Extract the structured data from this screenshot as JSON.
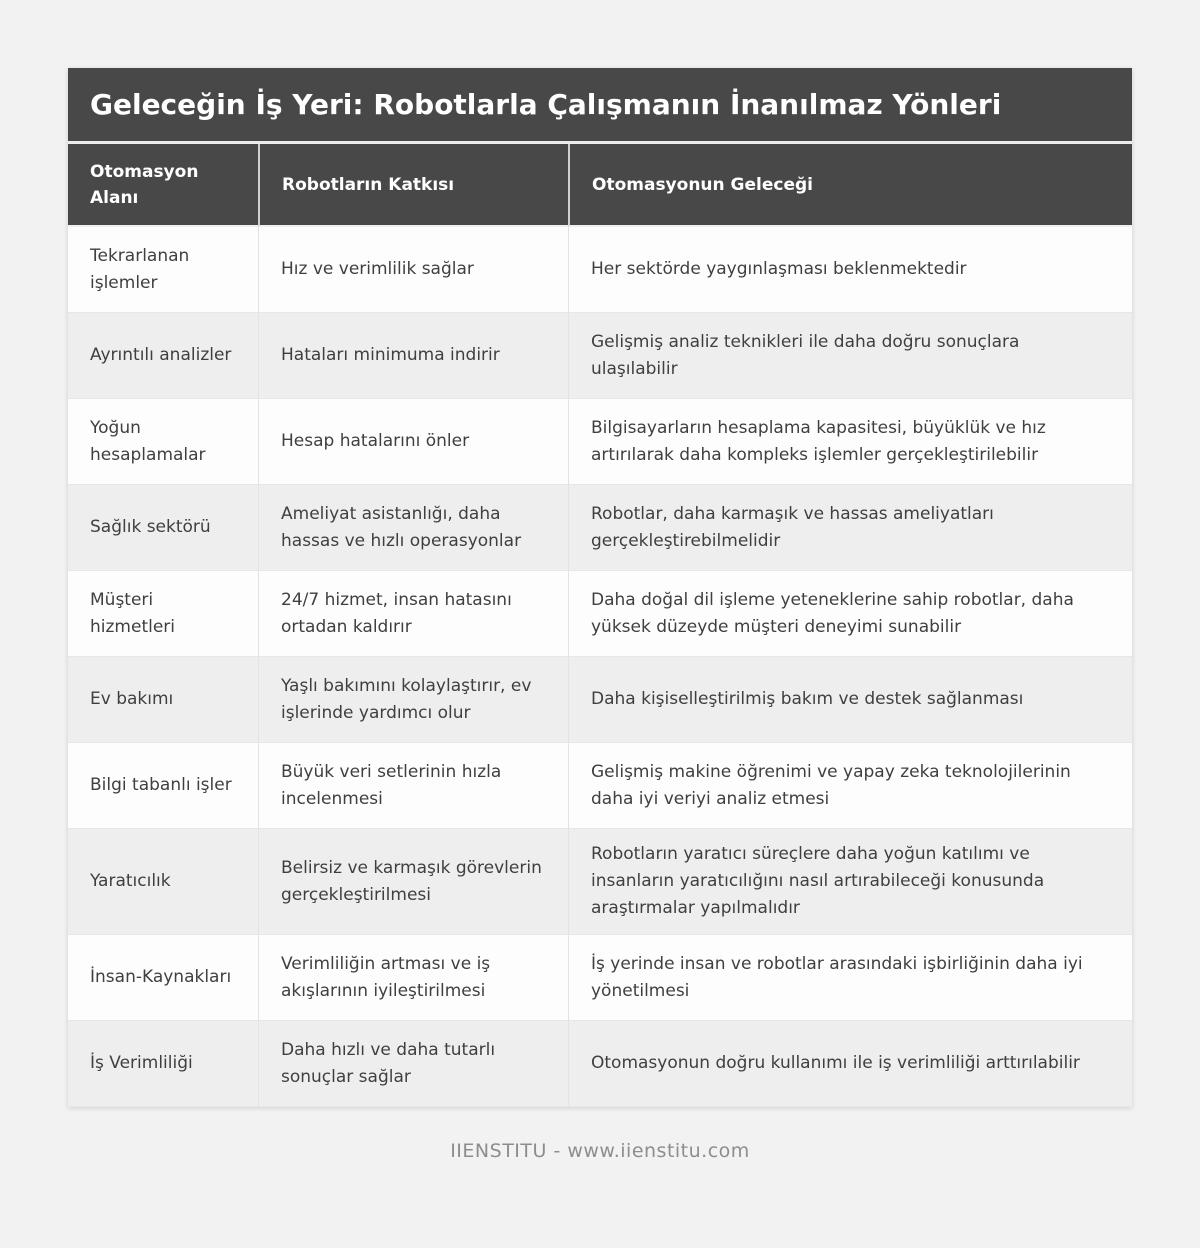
{
  "page": {
    "title": "Geleceğin İş Yeri: Robotlarla Çalışmanın İnanılmaz Yönleri",
    "footer": "IIENSTITU - www.iienstitu.com"
  },
  "colors": {
    "header_background": "#484848",
    "header_text": "#ffffff",
    "body_text": "#3f3f3f",
    "row_white": "#fdfdfd",
    "row_alternate": "#eeeeee",
    "page_background": "#f2f2f3",
    "cell_border": "#e3e3e3",
    "footer_text": "#8d8d8d"
  },
  "table": {
    "columns": [
      "Otomasyon Alanı",
      "Robotların Katkısı",
      "Otomasyonun Geleceği"
    ],
    "rows": [
      [
        "Tekrarlanan işlemler",
        "Hız ve verimlilik sağlar",
        "Her sektörde yaygınlaşması beklenmektedir"
      ],
      [
        "Ayrıntılı analizler",
        "Hataları minimuma indirir",
        "Gelişmiş analiz teknikleri ile daha doğru sonuçlara ulaşılabilir"
      ],
      [
        "Yoğun hesaplamalar",
        "Hesap hatalarını önler",
        "Bilgisayarların hesaplama kapasitesi, büyüklük ve hız artırılarak daha kompleks işlemler gerçekleştirilebilir"
      ],
      [
        "Sağlık sektörü",
        "Ameliyat asistanlığı, daha hassas ve hızlı operasyonlar",
        "Robotlar, daha karmaşık ve hassas ameliyatları gerçekleştirebilmelidir"
      ],
      [
        "Müşteri hizmetleri",
        "24/7 hizmet, insan hatasını ortadan kaldırır",
        "Daha doğal dil işleme yeteneklerine sahip robotlar, daha yüksek düzeyde müşteri deneyimi sunabilir"
      ],
      [
        "Ev bakımı",
        "Yaşlı bakımını kolaylaştırır, ev işlerinde yardımcı olur",
        "Daha kişiselleştirilmiş bakım ve destek sağlanması"
      ],
      [
        "Bilgi tabanlı işler",
        "Büyük veri setlerinin hızla incelenmesi",
        "Gelişmiş makine öğrenimi ve yapay zeka teknolojilerinin daha iyi veriyi analiz etmesi"
      ],
      [
        "Yaratıcılık",
        "Belirsiz ve karmaşık görevlerin gerçekleştirilmesi",
        "Robotların yaratıcı süreçlere daha yoğun katılımı ve insanların yaratıcılığını nasıl artırabileceği konusunda araştırmalar yapılmalıdır"
      ],
      [
        "İnsan-Kaynakları",
        "Verimliliğin artması ve iş akışlarının iyileştirilmesi",
        "İş yerinde insan ve robotlar arasındaki işbirliğinin daha iyi yönetilmesi"
      ],
      [
        "İş Verimliliği",
        "Daha hızlı ve daha tutarlı sonuçlar sağlar",
        "Otomasyonun doğru kullanımı ile iş verimliliği arttırılabilir"
      ]
    ]
  }
}
